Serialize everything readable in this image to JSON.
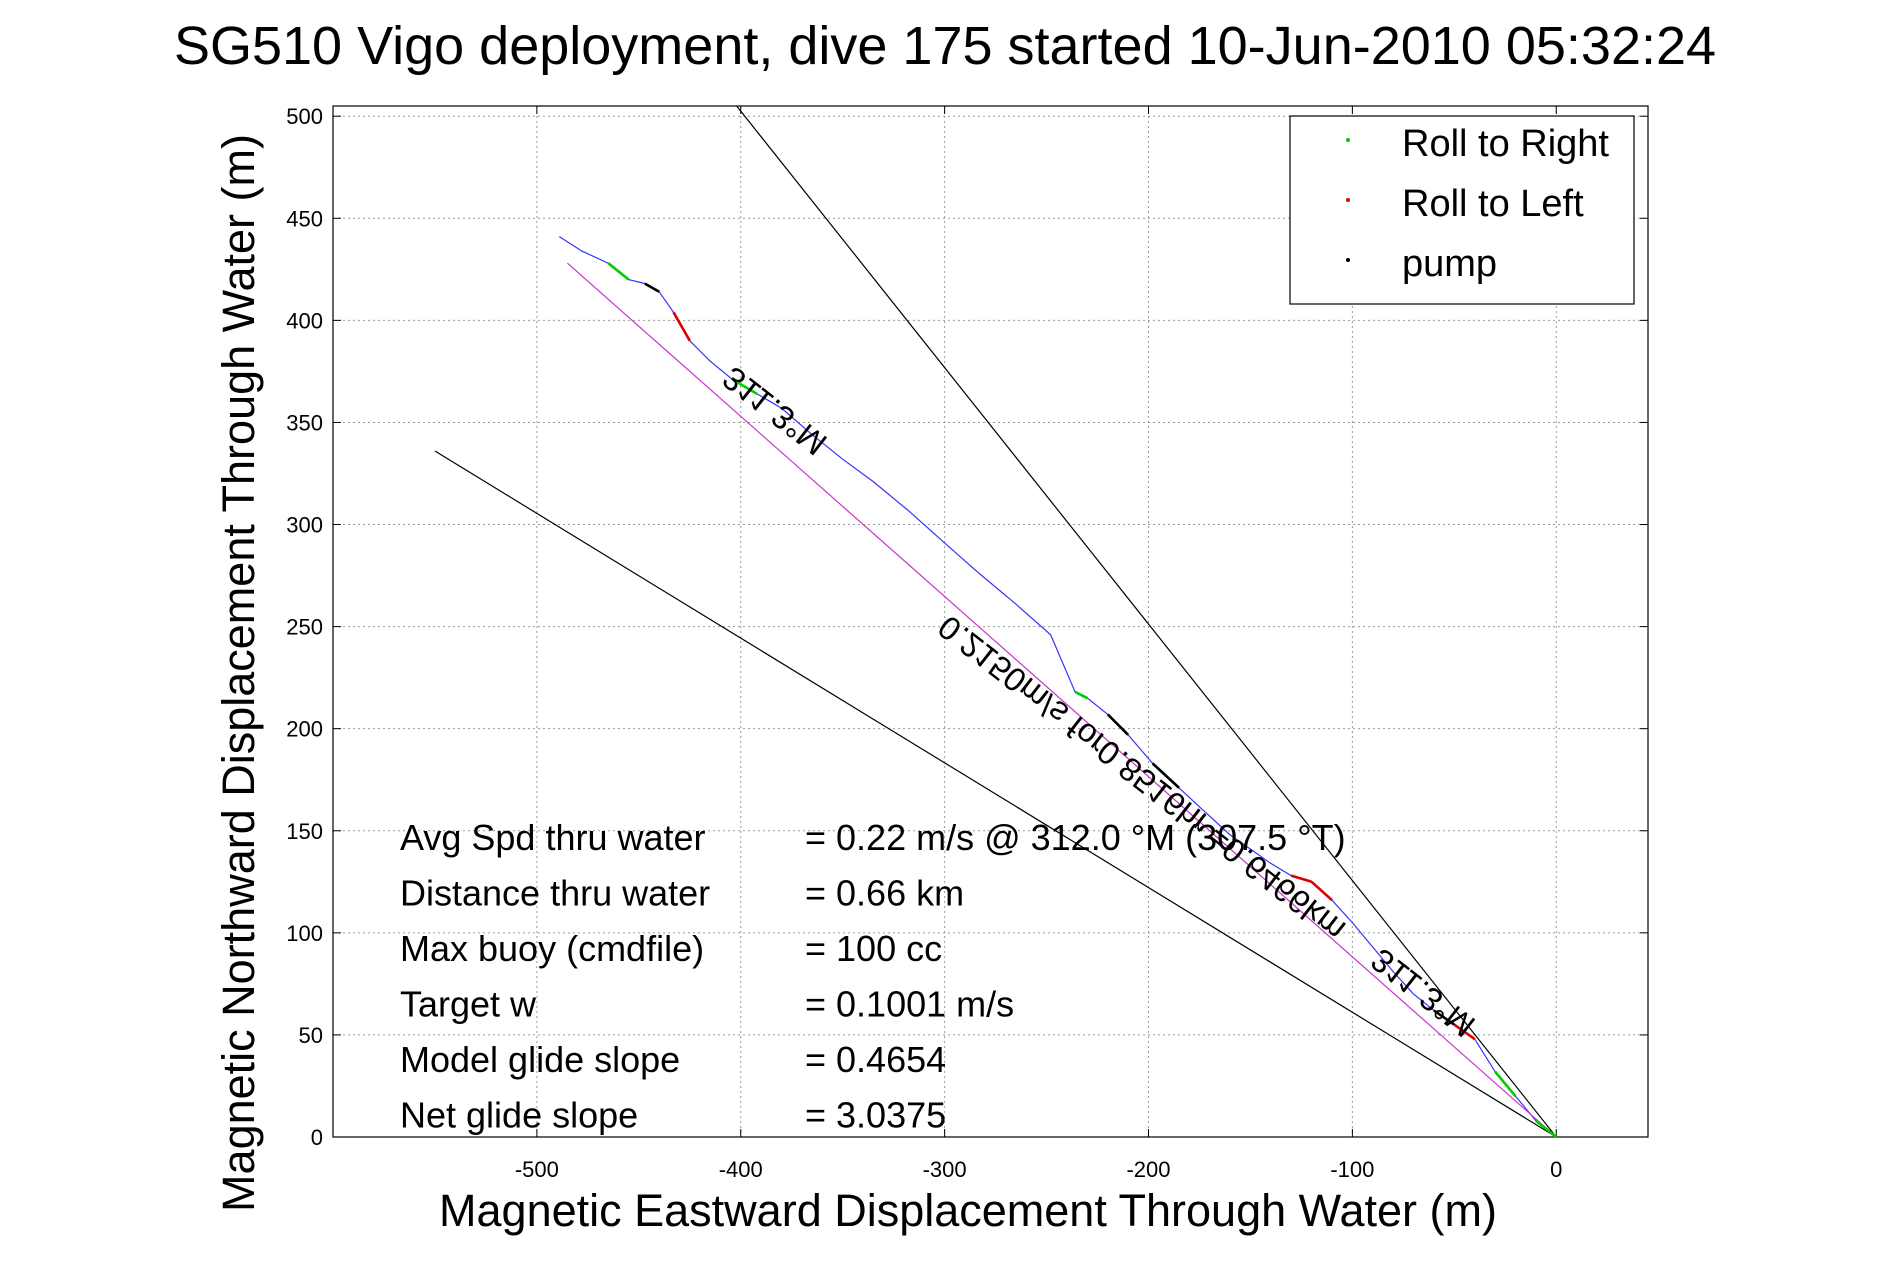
{
  "chart_data": {
    "type": "line",
    "title": "SG510 Vigo deployment, dive 175 started 10-Jun-2010 05:32:24",
    "xlabel": "Magnetic Eastward Displacement Through Water (m)",
    "ylabel": "Magnetic Northward Displacement Through Water (m)",
    "xlim": [
      -600,
      45
    ],
    "ylim": [
      0,
      505
    ],
    "xticks": [
      -500,
      -400,
      -300,
      -200,
      -100,
      0
    ],
    "yticks": [
      0,
      50,
      100,
      150,
      200,
      250,
      300,
      350,
      400,
      450,
      500
    ],
    "grid": true,
    "legend": {
      "placement": "top-right",
      "entries": [
        {
          "label": "Roll to Right",
          "color": "#00cc00"
        },
        {
          "label": "Roll to Left",
          "color": "#dd0000"
        },
        {
          "label": "pump",
          "color": "#000000"
        }
      ]
    },
    "series": [
      {
        "color": "#3333ff",
        "x": [
          -489,
          -478,
          -465,
          -455,
          -447,
          -440,
          -433,
          -425,
          -415,
          -404,
          -392,
          -380,
          -365,
          -350,
          -335,
          -318,
          -300,
          -283,
          -265,
          -248,
          -236,
          -230,
          -220,
          -210,
          -198,
          -185,
          -172,
          -160,
          -150,
          -140,
          -130,
          -120,
          -110,
          -100,
          -90,
          -80,
          -70,
          -60,
          -50,
          -40,
          -30,
          -20,
          -10,
          0
        ],
        "y": [
          441,
          434,
          428,
          420,
          418,
          414,
          404,
          390,
          380,
          371,
          364,
          357,
          344,
          332,
          321,
          307,
          291,
          276,
          261,
          246,
          218,
          215,
          207,
          197,
          183,
          171,
          159,
          148,
          141,
          134,
          128,
          125,
          116,
          105,
          93,
          81,
          70,
          62,
          55,
          48,
          32,
          20,
          8,
          0
        ]
      },
      {
        "color": "#cc33cc",
        "x": [
          -485,
          0
        ],
        "y": [
          428,
          0
        ]
      },
      {
        "color": "#000000",
        "x": [
          -402,
          0
        ],
        "y": [
          505,
          0
        ]
      },
      {
        "color": "#000000",
        "x": [
          -550,
          0
        ],
        "y": [
          336,
          0
        ]
      }
    ],
    "annotations": [
      {
        "text": "311.3°M",
        "x": -380,
        "y": 360,
        "angle": 38
      },
      {
        "text": "0.2150m/s for0.8516hr =0.6466km",
        "x": -200,
        "y": 180,
        "angle": 38
      },
      {
        "text": "311.3°M",
        "x": -62,
        "y": 75,
        "angle": 38
      }
    ],
    "stats": [
      {
        "label": "Avg Spd thru water",
        "value": "=  0.22 m/s @ 312.0 °M (307.5 °T)"
      },
      {
        "label": "Distance thru water",
        "value": "=  0.66 km"
      },
      {
        "label": "Max buoy (cmdfile)",
        "value": "= 100 cc"
      },
      {
        "label": "Target w",
        "value": "= 0.1001 m/s"
      },
      {
        "label": "Model glide slope",
        "value": "= 0.4654"
      },
      {
        "label": "Net glide slope",
        "value": "= 3.0375"
      }
    ]
  }
}
